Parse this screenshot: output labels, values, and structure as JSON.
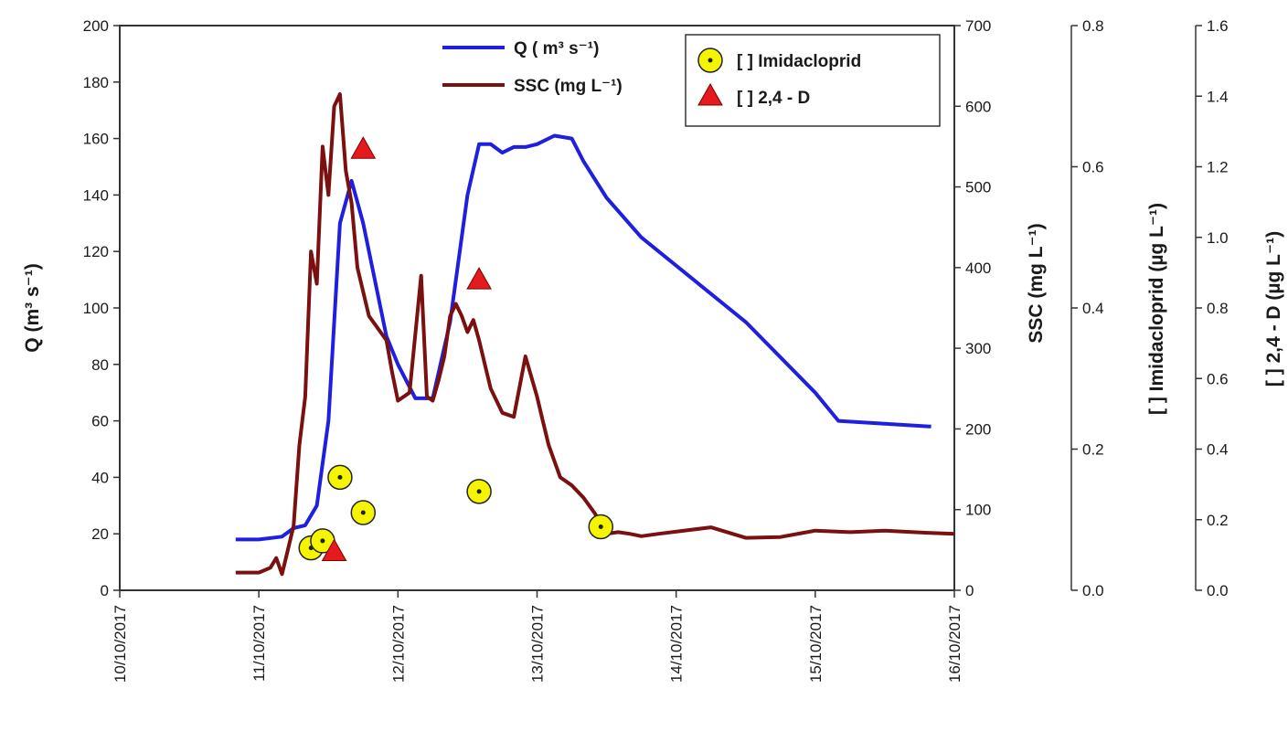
{
  "chart_data": {
    "type": "line",
    "x_unit": "date",
    "xlim": [
      "10/10/2017",
      "16/10/2017"
    ],
    "x_ticks": [
      "10/10/2017",
      "11/10/2017",
      "12/10/2017",
      "13/10/2017",
      "14/10/2017",
      "15/10/2017",
      "16/10/2017"
    ],
    "axes": {
      "left": {
        "label": "Q (m³ s⁻¹)",
        "ylim": [
          0,
          200
        ],
        "ticks": [
          0,
          20,
          40,
          60,
          80,
          100,
          120,
          140,
          160,
          180,
          200
        ]
      },
      "right1": {
        "label": "SSC (mg L⁻¹)",
        "ylim": [
          0,
          700
        ],
        "ticks": [
          0,
          100,
          200,
          300,
          400,
          500,
          600,
          700
        ]
      },
      "right2": {
        "label": "[  ] Imidacloprid (µg L⁻¹)",
        "ylim": [
          0,
          0.8
        ],
        "ticks": [
          "0.0",
          "0.2",
          "0.4",
          "0.6",
          "0.8"
        ]
      },
      "right3": {
        "label": "[  ] 2,4 - D (µg L⁻¹)",
        "ylim": [
          0,
          1.6
        ],
        "ticks": [
          "0.0",
          "0.2",
          "0.4",
          "0.6",
          "0.8",
          "1.0",
          "1.2",
          "1.4",
          "1.6"
        ]
      }
    },
    "legend": {
      "placement": "top-center",
      "q_label": "Q ( m³ s⁻¹)",
      "ssc_label": "SSC (mg L⁻¹)",
      "imid_label": "[  ] Imidacloprid",
      "d24_label": "[  ] 2,4 - D"
    },
    "series": [
      {
        "name": "Q ( m³ s⁻¹)",
        "axis": "left",
        "color": "#1f1fe0",
        "x": [
          "10/10/2017 20:00",
          "11/10/2017 00:00",
          "11/10/2017 04:00",
          "11/10/2017 06:00",
          "11/10/2017 08:00",
          "11/10/2017 10:00",
          "11/10/2017 12:00",
          "11/10/2017 14:00",
          "11/10/2017 16:00",
          "11/10/2017 18:00",
          "11/10/2017 20:00",
          "11/10/2017 22:00",
          "12/10/2017 00:00",
          "12/10/2017 03:00",
          "12/10/2017 06:00",
          "12/10/2017 09:00",
          "12/10/2017 12:00",
          "12/10/2017 14:00",
          "12/10/2017 16:00",
          "12/10/2017 18:00",
          "12/10/2017 20:00",
          "12/10/2017 22:00",
          "13/10/2017 00:00",
          "13/10/2017 03:00",
          "13/10/2017 06:00",
          "13/10/2017 08:00",
          "13/10/2017 12:00",
          "13/10/2017 18:00",
          "14/10/2017 12:00",
          "15/10/2017 00:00",
          "15/10/2017 04:00",
          "15/10/2017 12:00",
          "15/10/2017 20:00"
        ],
        "values": [
          18,
          18,
          19,
          22,
          23,
          30,
          60,
          130,
          145,
          130,
          110,
          90,
          80,
          68,
          68,
          95,
          140,
          158,
          158,
          155,
          157,
          157,
          158,
          161,
          160,
          152,
          139,
          125,
          95,
          70,
          60,
          59,
          58
        ]
      },
      {
        "name": "SSC (mg L⁻¹)",
        "axis": "right1",
        "color": "#7a1010",
        "x": [
          "10/10/2017 20:00",
          "11/10/2017 00:00",
          "11/10/2017 02:00",
          "11/10/2017 03:00",
          "11/10/2017 04:00",
          "11/10/2017 05:00",
          "11/10/2017 06:00",
          "11/10/2017 07:00",
          "11/10/2017 08:00",
          "11/10/2017 09:00",
          "11/10/2017 10:00",
          "11/10/2017 11:00",
          "11/10/2017 12:00",
          "11/10/2017 13:00",
          "11/10/2017 14:00",
          "11/10/2017 15:00",
          "11/10/2017 16:00",
          "11/10/2017 17:00",
          "11/10/2017 18:00",
          "11/10/2017 19:00",
          "11/10/2017 20:00",
          "11/10/2017 21:00",
          "11/10/2017 22:00",
          "11/10/2017 23:00",
          "12/10/2017 00:00",
          "12/10/2017 02:00",
          "12/10/2017 04:00",
          "12/10/2017 05:00",
          "12/10/2017 06:00",
          "12/10/2017 07:00",
          "12/10/2017 08:00",
          "12/10/2017 09:00",
          "12/10/2017 10:00",
          "12/10/2017 11:00",
          "12/10/2017 12:00",
          "12/10/2017 13:00",
          "12/10/2017 14:00",
          "12/10/2017 15:00",
          "12/10/2017 16:00",
          "12/10/2017 18:00",
          "12/10/2017 20:00",
          "12/10/2017 22:00",
          "13/10/2017 00:00",
          "13/10/2017 01:00",
          "13/10/2017 02:00",
          "13/10/2017 03:00",
          "13/10/2017 04:00",
          "13/10/2017 06:00",
          "13/10/2017 08:00",
          "13/10/2017 10:00",
          "13/10/2017 12:00",
          "13/10/2017 14:00",
          "13/10/2017 16:00",
          "13/10/2017 18:00",
          "13/10/2017 21:00",
          "14/10/2017 06:00",
          "14/10/2017 12:00",
          "14/10/2017 18:00",
          "15/10/2017 00:00",
          "15/10/2017 06:00",
          "15/10/2017 12:00",
          "15/10/2017 20:00",
          "16/10/2017 00:00"
        ],
        "values": [
          22,
          22,
          28,
          40,
          20,
          50,
          80,
          180,
          240,
          420,
          380,
          550,
          490,
          600,
          615,
          520,
          480,
          400,
          370,
          340,
          330,
          320,
          310,
          270,
          235,
          245,
          390,
          240,
          235,
          260,
          290,
          340,
          355,
          340,
          320,
          335,
          310,
          280,
          250,
          220,
          215,
          290,
          240,
          210,
          180,
          160,
          140,
          130,
          115,
          95,
          70,
          72,
          70,
          67,
          70,
          78,
          65,
          66,
          74,
          72,
          74,
          71,
          70
        ]
      }
    ],
    "points": [
      {
        "name": "[  ] Imidacloprid",
        "axis": "right2",
        "marker": "circle",
        "color": "#f5f500",
        "x": [
          "11/10/2017 09:00",
          "11/10/2017 11:00",
          "11/10/2017 14:00",
          "11/10/2017 18:00",
          "12/10/2017 14:00",
          "13/10/2017 11:00"
        ],
        "values": [
          0.06,
          0.07,
          0.16,
          0.11,
          0.14,
          0.09
        ]
      },
      {
        "name": "[  ] 2,4 - D",
        "axis": "right3",
        "marker": "triangle",
        "color": "#e41a1c",
        "x": [
          "11/10/2017 13:00",
          "11/10/2017 18:00",
          "12/10/2017 14:00"
        ],
        "values": [
          0.11,
          1.25,
          0.88
        ]
      }
    ]
  }
}
